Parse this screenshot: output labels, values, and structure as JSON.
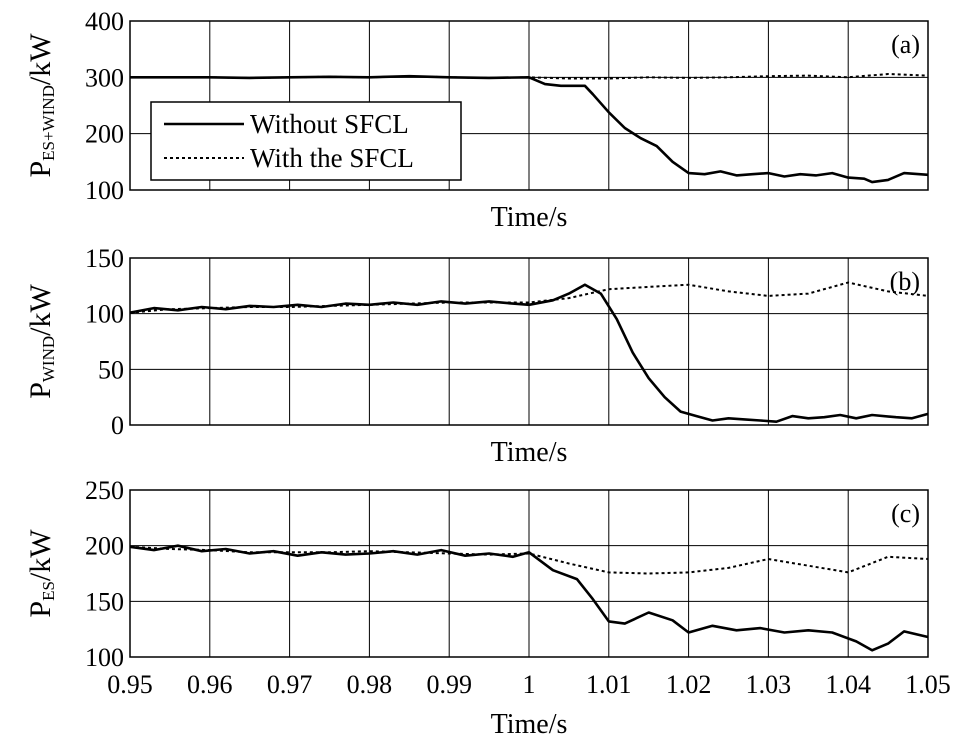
{
  "chart_data": [
    {
      "type": "line",
      "panel_label": "(a)",
      "ylabel_main": "P",
      "ylabel_sub": "ES+WIND",
      "ylabel_unit": "/kW",
      "xlabel": "Time/s",
      "xlim": [
        0.95,
        1.05
      ],
      "ylim": [
        100,
        400
      ],
      "yticks": [
        100,
        200,
        300,
        400
      ],
      "xticks": [
        0.95,
        0.96,
        0.97,
        0.98,
        0.99,
        1,
        1.01,
        1.02,
        1.03,
        1.04,
        1.05
      ],
      "show_xtick_labels": false,
      "grid": true,
      "legend": {
        "position": "middle-left",
        "entries": [
          {
            "label": "Without SFCL",
            "style": "solid"
          },
          {
            "label": "With the SFCL",
            "style": "dotted"
          }
        ]
      },
      "series": [
        {
          "name": "Without SFCL",
          "style": "solid",
          "x": [
            0.95,
            0.955,
            0.96,
            0.965,
            0.97,
            0.975,
            0.98,
            0.985,
            0.99,
            0.995,
            1.0,
            1.002,
            1.004,
            1.006,
            1.007,
            1.008,
            1.01,
            1.012,
            1.014,
            1.016,
            1.018,
            1.02,
            1.022,
            1.024,
            1.026,
            1.028,
            1.03,
            1.032,
            1.034,
            1.036,
            1.038,
            1.04,
            1.042,
            1.043,
            1.045,
            1.047,
            1.05
          ],
          "y": [
            300,
            300,
            300,
            299,
            300,
            301,
            300,
            302,
            300,
            299,
            300,
            288,
            285,
            285,
            285,
            270,
            238,
            210,
            192,
            178,
            150,
            130,
            128,
            133,
            126,
            128,
            130,
            124,
            128,
            126,
            130,
            122,
            120,
            114,
            118,
            130,
            127
          ]
        },
        {
          "name": "With the SFCL",
          "style": "dotted",
          "x": [
            0.95,
            0.955,
            0.96,
            0.965,
            0.97,
            0.975,
            0.98,
            0.985,
            0.99,
            0.995,
            1.0,
            1.005,
            1.01,
            1.015,
            1.02,
            1.025,
            1.03,
            1.035,
            1.04,
            1.045,
            1.05
          ],
          "y": [
            300,
            300,
            300,
            299,
            300,
            301,
            300,
            302,
            300,
            299,
            300,
            298,
            298,
            300,
            299,
            300,
            302,
            303,
            300,
            306,
            303
          ]
        }
      ]
    },
    {
      "type": "line",
      "panel_label": "(b)",
      "ylabel_main": "P",
      "ylabel_sub": "WIND",
      "ylabel_unit": "/kW",
      "xlabel": "Time/s",
      "xlim": [
        0.95,
        1.05
      ],
      "ylim": [
        0,
        150
      ],
      "yticks": [
        0,
        50,
        100,
        150
      ],
      "xticks": [
        0.95,
        0.96,
        0.97,
        0.98,
        0.99,
        1,
        1.01,
        1.02,
        1.03,
        1.04,
        1.05
      ],
      "show_xtick_labels": false,
      "grid": true,
      "series": [
        {
          "name": "Without SFCL",
          "style": "solid",
          "x": [
            0.95,
            0.953,
            0.956,
            0.959,
            0.962,
            0.965,
            0.968,
            0.971,
            0.974,
            0.977,
            0.98,
            0.983,
            0.986,
            0.989,
            0.992,
            0.995,
            0.998,
            1.0,
            1.003,
            1.005,
            1.007,
            1.009,
            1.011,
            1.013,
            1.015,
            1.017,
            1.019,
            1.021,
            1.023,
            1.025,
            1.027,
            1.029,
            1.031,
            1.033,
            1.035,
            1.037,
            1.039,
            1.041,
            1.043,
            1.046,
            1.048,
            1.05
          ],
          "y": [
            101,
            105,
            103,
            106,
            104,
            107,
            106,
            108,
            106,
            109,
            108,
            110,
            108,
            111,
            109,
            111,
            109,
            108,
            112,
            118,
            126,
            118,
            95,
            65,
            42,
            25,
            12,
            8,
            4,
            6,
            5,
            4,
            3,
            8,
            6,
            7,
            9,
            6,
            9,
            7,
            6,
            10
          ]
        },
        {
          "name": "With the SFCL",
          "style": "dotted",
          "x": [
            0.95,
            0.955,
            0.96,
            0.965,
            0.97,
            0.975,
            0.98,
            0.985,
            0.99,
            0.995,
            1.0,
            1.005,
            1.01,
            1.015,
            1.02,
            1.025,
            1.03,
            1.035,
            1.04,
            1.045,
            1.05
          ],
          "y": [
            101,
            104,
            105,
            106,
            106,
            107,
            108,
            109,
            110,
            110,
            110,
            114,
            122,
            124,
            126,
            120,
            116,
            118,
            128,
            120,
            116
          ]
        }
      ]
    },
    {
      "type": "line",
      "panel_label": "(c)",
      "ylabel_main": "P",
      "ylabel_sub": "ES",
      "ylabel_unit": "/kW",
      "xlabel": "Time/s",
      "xlim": [
        0.95,
        1.05
      ],
      "ylim": [
        100,
        250
      ],
      "yticks": [
        100,
        150,
        200,
        250
      ],
      "xticks": [
        0.95,
        0.96,
        0.97,
        0.98,
        0.99,
        1,
        1.01,
        1.02,
        1.03,
        1.04,
        1.05
      ],
      "xtick_labels": [
        "0.95",
        "0.96",
        "0.97",
        "0.98",
        "0.99",
        "1",
        "1.01",
        "1.02",
        "1.03",
        "1.04",
        "1.05"
      ],
      "show_xtick_labels": true,
      "grid": true,
      "series": [
        {
          "name": "Without SFCL",
          "style": "solid",
          "x": [
            0.95,
            0.953,
            0.956,
            0.959,
            0.962,
            0.965,
            0.968,
            0.971,
            0.974,
            0.977,
            0.98,
            0.983,
            0.986,
            0.989,
            0.992,
            0.995,
            0.998,
            1.0,
            1.003,
            1.006,
            1.008,
            1.01,
            1.012,
            1.015,
            1.018,
            1.02,
            1.023,
            1.026,
            1.029,
            1.032,
            1.035,
            1.038,
            1.041,
            1.043,
            1.045,
            1.047,
            1.05
          ],
          "y": [
            199,
            196,
            200,
            195,
            197,
            193,
            195,
            191,
            194,
            192,
            193,
            195,
            192,
            196,
            191,
            193,
            190,
            194,
            178,
            170,
            152,
            132,
            130,
            140,
            133,
            122,
            128,
            124,
            126,
            122,
            124,
            122,
            114,
            106,
            112,
            123,
            118
          ]
        },
        {
          "name": "With the SFCL",
          "style": "dotted",
          "x": [
            0.95,
            0.955,
            0.96,
            0.965,
            0.97,
            0.975,
            0.98,
            0.985,
            0.99,
            0.995,
            1.0,
            1.005,
            1.01,
            1.015,
            1.02,
            1.025,
            1.03,
            1.035,
            1.04,
            1.045,
            1.05
          ],
          "y": [
            199,
            197,
            196,
            194,
            194,
            194,
            195,
            194,
            193,
            192,
            193,
            184,
            176,
            175,
            176,
            180,
            188,
            182,
            176,
            190,
            188
          ]
        }
      ]
    }
  ]
}
